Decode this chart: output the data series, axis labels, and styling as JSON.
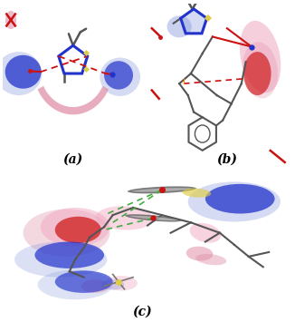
{
  "background_color": "#ffffff",
  "panel_a_label": "(a)",
  "panel_b_label": "(b)",
  "panel_c_label": "(c)",
  "label_fontsize": 10,
  "blue_dark": "#2233cc",
  "blue_mid": "#5566cc",
  "blue_light": "#8899dd",
  "blue_very_light": "#aabbee",
  "pink_blob": "#e090a8",
  "red_color": "#cc1111",
  "red_dark": "#cc0000",
  "pink_light": "#f0a8c0",
  "gray_mol": "#777777",
  "gray_dark": "#555555",
  "yellow_small": "#ddcc44",
  "green_dashed": "#44aa44",
  "orange_line": "#dd8844"
}
